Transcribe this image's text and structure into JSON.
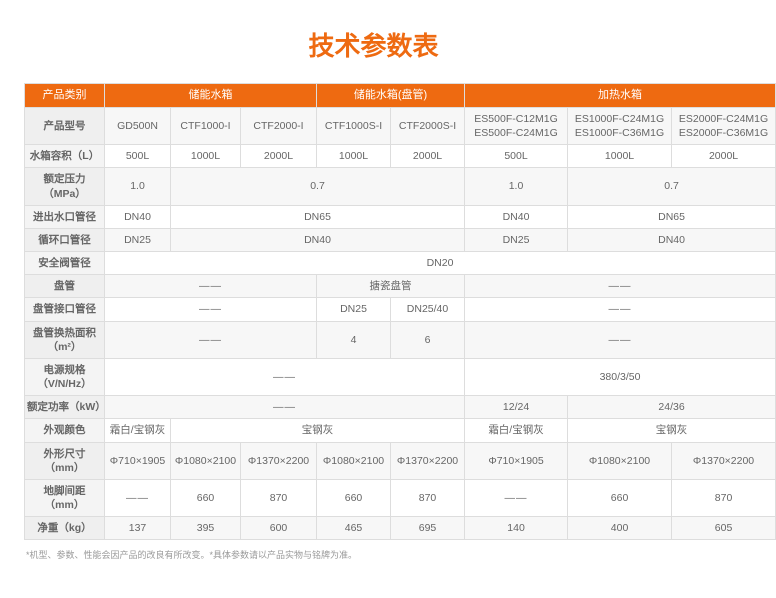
{
  "title": "技术参数表",
  "colors": {
    "accent": "#ee6a11",
    "border": "#dddddd",
    "text": "#666666",
    "labelbg": "#f4f4f4",
    "altbg": "#f7f7f7",
    "bg": "#ffffff"
  },
  "header": {
    "category": "产品类别",
    "groups": [
      "储能水箱",
      "储能水箱(盘管)",
      "加热水箱"
    ],
    "group_spans": [
      3,
      2,
      3
    ]
  },
  "rows": [
    {
      "label": "产品型号",
      "cells": [
        "GD500N",
        "CTF1000-I",
        "CTF2000-I",
        "CTF1000S-I",
        "CTF2000S-I",
        {
          "stack": [
            "ES500F-C12M1G",
            "ES500F-C24M1G"
          ]
        },
        {
          "stack": [
            "ES1000F-C24M1G",
            "ES1000F-C36M1G"
          ]
        },
        {
          "stack": [
            "ES2000F-C24M1G",
            "ES2000F-C36M1G"
          ]
        }
      ],
      "alt": true
    },
    {
      "label": "水箱容积（L）",
      "cells": [
        "500L",
        "1000L",
        "2000L",
        "1000L",
        "2000L",
        "500L",
        "1000L",
        "2000L"
      ]
    },
    {
      "label": "额定压力（MPa）",
      "cells": [
        "1.0",
        {
          "v": "0.7",
          "span": 4
        },
        "1.0",
        {
          "v": "0.7",
          "span": 2
        }
      ],
      "alt": true
    },
    {
      "label": "进出水口管径",
      "cells": [
        "DN40",
        {
          "v": "DN65",
          "span": 4
        },
        "DN40",
        {
          "v": "DN65",
          "span": 2
        }
      ]
    },
    {
      "label": "循环口管径",
      "cells": [
        "DN25",
        {
          "v": "DN40",
          "span": 4
        },
        "DN25",
        {
          "v": "DN40",
          "span": 2
        }
      ],
      "alt": true
    },
    {
      "label": "安全阀管径",
      "cells": [
        {
          "v": "DN20",
          "span": 8
        }
      ]
    },
    {
      "label": "盘管",
      "cells": [
        {
          "v": "——",
          "span": 3,
          "dash": true
        },
        {
          "v": "搪瓷盘管",
          "span": 2
        },
        {
          "v": "——",
          "span": 3,
          "dash": true
        }
      ],
      "alt": true
    },
    {
      "label": "盘管接口管径",
      "cells": [
        {
          "v": "——",
          "span": 3,
          "dash": true
        },
        "DN25",
        "DN25/40",
        {
          "v": "——",
          "span": 3,
          "dash": true
        }
      ]
    },
    {
      "label": "盘管换热面积（m²）",
      "cells": [
        {
          "v": "——",
          "span": 3,
          "dash": true
        },
        "4",
        "6",
        {
          "v": "——",
          "span": 3,
          "dash": true
        }
      ],
      "alt": true
    },
    {
      "label": "电源规格（V/N/Hz）",
      "cells": [
        {
          "v": "——",
          "span": 5,
          "dash": true
        },
        {
          "v": "380/3/50",
          "span": 3
        }
      ]
    },
    {
      "label": "额定功率（kW）",
      "cells": [
        {
          "v": "——",
          "span": 5,
          "dash": true
        },
        "12/24",
        {
          "v": "24/36",
          "span": 2
        }
      ],
      "alt": true
    },
    {
      "label": "外观颜色",
      "cells": [
        "霜白/宝钢灰",
        {
          "v": "宝钢灰",
          "span": 4
        },
        "霜白/宝钢灰",
        {
          "v": "宝钢灰",
          "span": 2
        }
      ]
    },
    {
      "label": "外形尺寸（mm）",
      "cells": [
        "Φ710×1905",
        "Φ1080×2100",
        "Φ1370×2200",
        "Φ1080×2100",
        "Φ1370×2200",
        "Φ710×1905",
        "Φ1080×2100",
        "Φ1370×2200"
      ],
      "alt": true
    },
    {
      "label": "地脚间距（mm）",
      "cells": [
        {
          "v": "——",
          "dash": true
        },
        "660",
        "870",
        "660",
        "870",
        {
          "v": "——",
          "dash": true
        },
        "660",
        "870"
      ]
    },
    {
      "label": "净重（kg）",
      "cells": [
        "137",
        "395",
        "600",
        "465",
        "695",
        "140",
        "400",
        "605"
      ],
      "alt": true
    }
  ],
  "footnote": "*机型、参数、性能会因产品的改良有所改变。*具体参数请以产品实物与铭牌为准。"
}
